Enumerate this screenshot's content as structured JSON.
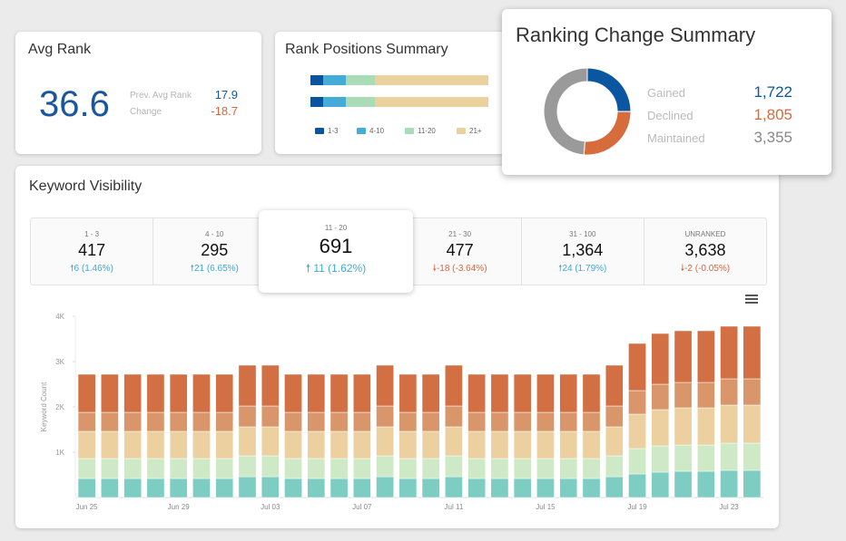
{
  "avg_rank": {
    "title": "Avg Rank",
    "value": "36.6",
    "prev_label": "Prev. Avg Rank",
    "prev_value": "17.9",
    "change_label": "Change",
    "change_value": "-18.7"
  },
  "rank_positions": {
    "title": "Rank Positions Summary",
    "segments_pct": [
      7.3,
      12.7,
      16.3,
      63.7
    ],
    "legend": [
      {
        "label": "1-3",
        "color": "#0a539e"
      },
      {
        "label": "4-10",
        "color": "#44acd6"
      },
      {
        "label": "11-20",
        "color": "#a9dcb7"
      },
      {
        "label": "21+",
        "color": "#ebd19e"
      }
    ]
  },
  "ranking_change": {
    "title": "Ranking Change Summary",
    "items": [
      {
        "label": "Gained",
        "value": "1,722",
        "num": 1722,
        "color": "#0b56a0"
      },
      {
        "label": "Declined",
        "value": "1,805",
        "num": 1805,
        "color": "#d66b3c"
      },
      {
        "label": "Maintained",
        "value": "3,355",
        "num": 3355,
        "color": "#9a9a9a"
      }
    ]
  },
  "keyword_visibility": {
    "title": "Keyword Visibility",
    "tiles": [
      {
        "label": "1 - 3",
        "value": "417",
        "delta": "6 (1.46%)",
        "dir": "up"
      },
      {
        "label": "4 - 10",
        "value": "295",
        "delta": "21 (6.65%)",
        "dir": "up"
      },
      {
        "label": "11 - 20",
        "value": "691",
        "delta": "11 (1.62%)",
        "dir": "up"
      },
      {
        "label": "21 - 30",
        "value": "477",
        "delta": "-18 (-3.64%)",
        "dir": "down"
      },
      {
        "label": "31 - 100",
        "value": "1,364",
        "delta": "24 (1.79%)",
        "dir": "up"
      },
      {
        "label": "UNRANKED",
        "value": "3,638",
        "delta": "-2 (-0.05%)",
        "dir": "down"
      }
    ],
    "menu_icon": "hamburger-menu-icon"
  },
  "chart_data": {
    "type": "bar",
    "stacked": true,
    "ylabel": "Keyword Count",
    "ylim": [
      0,
      4000
    ],
    "yticks": [
      "1K",
      "2K",
      "3K",
      "4K"
    ],
    "ytick_values": [
      1000,
      2000,
      3000,
      4000
    ],
    "categories": [
      "Jun 25",
      "Jun 26",
      "Jun 27",
      "Jun 28",
      "Jun 29",
      "Jun 30",
      "Jul 01",
      "Jul 02",
      "Jul 03",
      "Jul 04",
      "Jul 05",
      "Jul 06",
      "Jul 07",
      "Jul 08",
      "Jul 09",
      "Jul 10",
      "Jul 11",
      "Jul 12",
      "Jul 13",
      "Jul 14",
      "Jul 15",
      "Jul 16",
      "Jul 17",
      "Jul 18",
      "Jul 19",
      "Jul 20",
      "Jul 21",
      "Jul 22",
      "Jul 23",
      "Jul 24"
    ],
    "xtick_labels": [
      "Jun 25",
      "Jun 29",
      "Jul 03",
      "Jul 07",
      "Jul 11",
      "Jul 15",
      "Jul 19",
      "Jul 23"
    ],
    "colors": [
      "#7dcdc3",
      "#cde9c5",
      "#ecd09f",
      "#d8966a",
      "#d37043"
    ],
    "series": [
      {
        "values": [
          420,
          420,
          420,
          420,
          420,
          420,
          420,
          460,
          460,
          420,
          420,
          420,
          420,
          460,
          420,
          420,
          460,
          420,
          420,
          420,
          420,
          420,
          420,
          460,
          520,
          560,
          580,
          580,
          600,
          600
        ]
      },
      {
        "values": [
          440,
          440,
          440,
          440,
          440,
          440,
          440,
          460,
          460,
          440,
          440,
          440,
          440,
          460,
          440,
          440,
          460,
          440,
          440,
          440,
          440,
          440,
          440,
          460,
          560,
          580,
          580,
          580,
          600,
          600
        ]
      },
      {
        "values": [
          600,
          600,
          600,
          600,
          600,
          600,
          600,
          640,
          640,
          600,
          600,
          600,
          600,
          640,
          600,
          600,
          640,
          600,
          600,
          600,
          600,
          600,
          600,
          640,
          760,
          800,
          820,
          820,
          840,
          840
        ]
      },
      {
        "values": [
          420,
          420,
          420,
          420,
          420,
          420,
          420,
          460,
          460,
          420,
          420,
          420,
          420,
          460,
          420,
          420,
          460,
          420,
          420,
          420,
          420,
          420,
          420,
          460,
          520,
          560,
          560,
          560,
          580,
          580
        ]
      },
      {
        "values": [
          840,
          840,
          840,
          840,
          840,
          840,
          840,
          900,
          900,
          840,
          840,
          840,
          840,
          900,
          840,
          840,
          900,
          840,
          840,
          840,
          840,
          840,
          840,
          900,
          1040,
          1120,
          1140,
          1140,
          1160,
          1160
        ]
      }
    ]
  }
}
